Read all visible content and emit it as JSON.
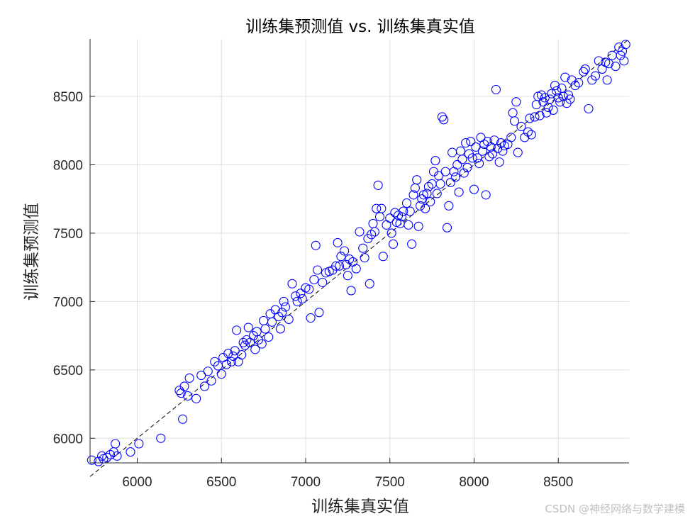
{
  "chart_data": {
    "type": "scatter",
    "title": "训练集预测值 vs. 训练集真实值",
    "xlabel": "训练集真实值",
    "ylabel": "训练集预测值",
    "xlim": [
      5720,
      8920
    ],
    "ylim": [
      5820,
      8920
    ],
    "xticks": [
      6000,
      6500,
      7000,
      7500,
      8000,
      8500
    ],
    "yticks": [
      6000,
      6500,
      7000,
      7500,
      8000,
      8500
    ],
    "grid": true,
    "marker": "open-circle",
    "marker_color": "#0000ff",
    "reference_line": {
      "style": "dashed",
      "color": "#000000",
      "from": [
        5720,
        5720
      ],
      "to": [
        8920,
        8920
      ]
    },
    "points": [
      [
        5730,
        5840
      ],
      [
        5770,
        5830
      ],
      [
        5790,
        5870
      ],
      [
        5800,
        5850
      ],
      [
        5820,
        5860
      ],
      [
        5840,
        5880
      ],
      [
        5860,
        5900
      ],
      [
        5870,
        5960
      ],
      [
        5880,
        5870
      ],
      [
        5960,
        5900
      ],
      [
        6010,
        5960
      ],
      [
        6140,
        6000
      ],
      [
        6250,
        6350
      ],
      [
        6260,
        6330
      ],
      [
        6270,
        6140
      ],
      [
        6280,
        6380
      ],
      [
        6300,
        6310
      ],
      [
        6310,
        6440
      ],
      [
        6350,
        6290
      ],
      [
        6380,
        6460
      ],
      [
        6400,
        6380
      ],
      [
        6420,
        6490
      ],
      [
        6440,
        6420
      ],
      [
        6460,
        6560
      ],
      [
        6480,
        6530
      ],
      [
        6500,
        6470
      ],
      [
        6510,
        6590
      ],
      [
        6530,
        6540
      ],
      [
        6540,
        6620
      ],
      [
        6560,
        6560
      ],
      [
        6570,
        6600
      ],
      [
        6580,
        6640
      ],
      [
        6590,
        6790
      ],
      [
        6600,
        6560
      ],
      [
        6620,
        6610
      ],
      [
        6630,
        6700
      ],
      [
        6640,
        6680
      ],
      [
        6650,
        6720
      ],
      [
        6660,
        6810
      ],
      [
        6670,
        6700
      ],
      [
        6690,
        6750
      ],
      [
        6700,
        6650
      ],
      [
        6710,
        6780
      ],
      [
        6720,
        6720
      ],
      [
        6740,
        6690
      ],
      [
        6750,
        6860
      ],
      [
        6760,
        6800
      ],
      [
        6780,
        6740
      ],
      [
        6790,
        6910
      ],
      [
        6800,
        6850
      ],
      [
        6820,
        6940
      ],
      [
        6840,
        6890
      ],
      [
        6850,
        6800
      ],
      [
        6860,
        6920
      ],
      [
        6870,
        7000
      ],
      [
        6880,
        6960
      ],
      [
        6900,
        6870
      ],
      [
        6920,
        7130
      ],
      [
        6940,
        7040
      ],
      [
        6950,
        7000
      ],
      [
        6970,
        7060
      ],
      [
        6980,
        7020
      ],
      [
        7000,
        7100
      ],
      [
        7020,
        7090
      ],
      [
        7030,
        6880
      ],
      [
        7050,
        7160
      ],
      [
        7060,
        7410
      ],
      [
        7070,
        7230
      ],
      [
        7080,
        6920
      ],
      [
        7100,
        7140
      ],
      [
        7120,
        7210
      ],
      [
        7140,
        7220
      ],
      [
        7160,
        7230
      ],
      [
        7180,
        7260
      ],
      [
        7190,
        7430
      ],
      [
        7200,
        7260
      ],
      [
        7210,
        7330
      ],
      [
        7230,
        7370
      ],
      [
        7240,
        7270
      ],
      [
        7250,
        7190
      ],
      [
        7260,
        7310
      ],
      [
        7270,
        7080
      ],
      [
        7280,
        7290
      ],
      [
        7300,
        7240
      ],
      [
        7320,
        7510
      ],
      [
        7340,
        7390
      ],
      [
        7350,
        7320
      ],
      [
        7370,
        7460
      ],
      [
        7380,
        7130
      ],
      [
        7390,
        7490
      ],
      [
        7400,
        7570
      ],
      [
        7410,
        7510
      ],
      [
        7420,
        7680
      ],
      [
        7430,
        7850
      ],
      [
        7440,
        7620
      ],
      [
        7450,
        7680
      ],
      [
        7460,
        7330
      ],
      [
        7480,
        7560
      ],
      [
        7500,
        7610
      ],
      [
        7510,
        7500
      ],
      [
        7520,
        7420
      ],
      [
        7530,
        7650
      ],
      [
        7540,
        7580
      ],
      [
        7550,
        7630
      ],
      [
        7560,
        7570
      ],
      [
        7570,
        7620
      ],
      [
        7580,
        7660
      ],
      [
        7600,
        7720
      ],
      [
        7610,
        7560
      ],
      [
        7620,
        7660
      ],
      [
        7630,
        7420
      ],
      [
        7640,
        7780
      ],
      [
        7650,
        7830
      ],
      [
        7660,
        7890
      ],
      [
        7670,
        7550
      ],
      [
        7680,
        7700
      ],
      [
        7690,
        7750
      ],
      [
        7700,
        7780
      ],
      [
        7710,
        7680
      ],
      [
        7720,
        7790
      ],
      [
        7730,
        7840
      ],
      [
        7740,
        7730
      ],
      [
        7750,
        7860
      ],
      [
        7760,
        7950
      ],
      [
        7770,
        8030
      ],
      [
        7780,
        7790
      ],
      [
        7790,
        7920
      ],
      [
        7800,
        7860
      ],
      [
        7810,
        8350
      ],
      [
        7820,
        8330
      ],
      [
        7830,
        7950
      ],
      [
        7840,
        7540
      ],
      [
        7850,
        7700
      ],
      [
        7860,
        7870
      ],
      [
        7870,
        8090
      ],
      [
        7880,
        7950
      ],
      [
        7890,
        7910
      ],
      [
        7900,
        8000
      ],
      [
        7910,
        7800
      ],
      [
        7920,
        8100
      ],
      [
        7930,
        8040
      ],
      [
        7940,
        7940
      ],
      [
        7950,
        8160
      ],
      [
        7960,
        7980
      ],
      [
        7970,
        8080
      ],
      [
        7980,
        8170
      ],
      [
        7990,
        8050
      ],
      [
        8000,
        7820
      ],
      [
        8010,
        8130
      ],
      [
        8020,
        8050
      ],
      [
        8030,
        8010
      ],
      [
        8040,
        8200
      ],
      [
        8050,
        8100
      ],
      [
        8060,
        8150
      ],
      [
        8070,
        7780
      ],
      [
        8080,
        8170
      ],
      [
        8090,
        8060
      ],
      [
        8100,
        8130
      ],
      [
        8110,
        8080
      ],
      [
        8120,
        8180
      ],
      [
        8130,
        8550
      ],
      [
        8140,
        8120
      ],
      [
        8150,
        8020
      ],
      [
        8160,
        8160
      ],
      [
        8170,
        8100
      ],
      [
        8180,
        8140
      ],
      [
        8200,
        8150
      ],
      [
        8220,
        8200
      ],
      [
        8230,
        8380
      ],
      [
        8240,
        8320
      ],
      [
        8250,
        8460
      ],
      [
        8260,
        8090
      ],
      [
        8280,
        8280
      ],
      [
        8300,
        8200
      ],
      [
        8320,
        8240
      ],
      [
        8330,
        8340
      ],
      [
        8340,
        8220
      ],
      [
        8360,
        8350
      ],
      [
        8370,
        8440
      ],
      [
        8380,
        8500
      ],
      [
        8390,
        8360
      ],
      [
        8400,
        8510
      ],
      [
        8410,
        8460
      ],
      [
        8420,
        8490
      ],
      [
        8430,
        8380
      ],
      [
        8440,
        8420
      ],
      [
        8450,
        8480
      ],
      [
        8460,
        8520
      ],
      [
        8470,
        8400
      ],
      [
        8480,
        8580
      ],
      [
        8490,
        8540
      ],
      [
        8500,
        8490
      ],
      [
        8510,
        8460
      ],
      [
        8520,
        8560
      ],
      [
        8530,
        8500
      ],
      [
        8540,
        8640
      ],
      [
        8550,
        8450
      ],
      [
        8560,
        8510
      ],
      [
        8570,
        8480
      ],
      [
        8580,
        8620
      ],
      [
        8600,
        8580
      ],
      [
        8620,
        8600
      ],
      [
        8650,
        8680
      ],
      [
        8660,
        8700
      ],
      [
        8680,
        8410
      ],
      [
        8700,
        8620
      ],
      [
        8720,
        8650
      ],
      [
        8740,
        8760
      ],
      [
        8760,
        8700
      ],
      [
        8780,
        8750
      ],
      [
        8790,
        8620
      ],
      [
        8800,
        8740
      ],
      [
        8820,
        8800
      ],
      [
        8840,
        8720
      ],
      [
        8860,
        8860
      ],
      [
        8870,
        8800
      ],
      [
        8880,
        8830
      ],
      [
        8890,
        8760
      ],
      [
        8900,
        8880
      ]
    ]
  }
}
